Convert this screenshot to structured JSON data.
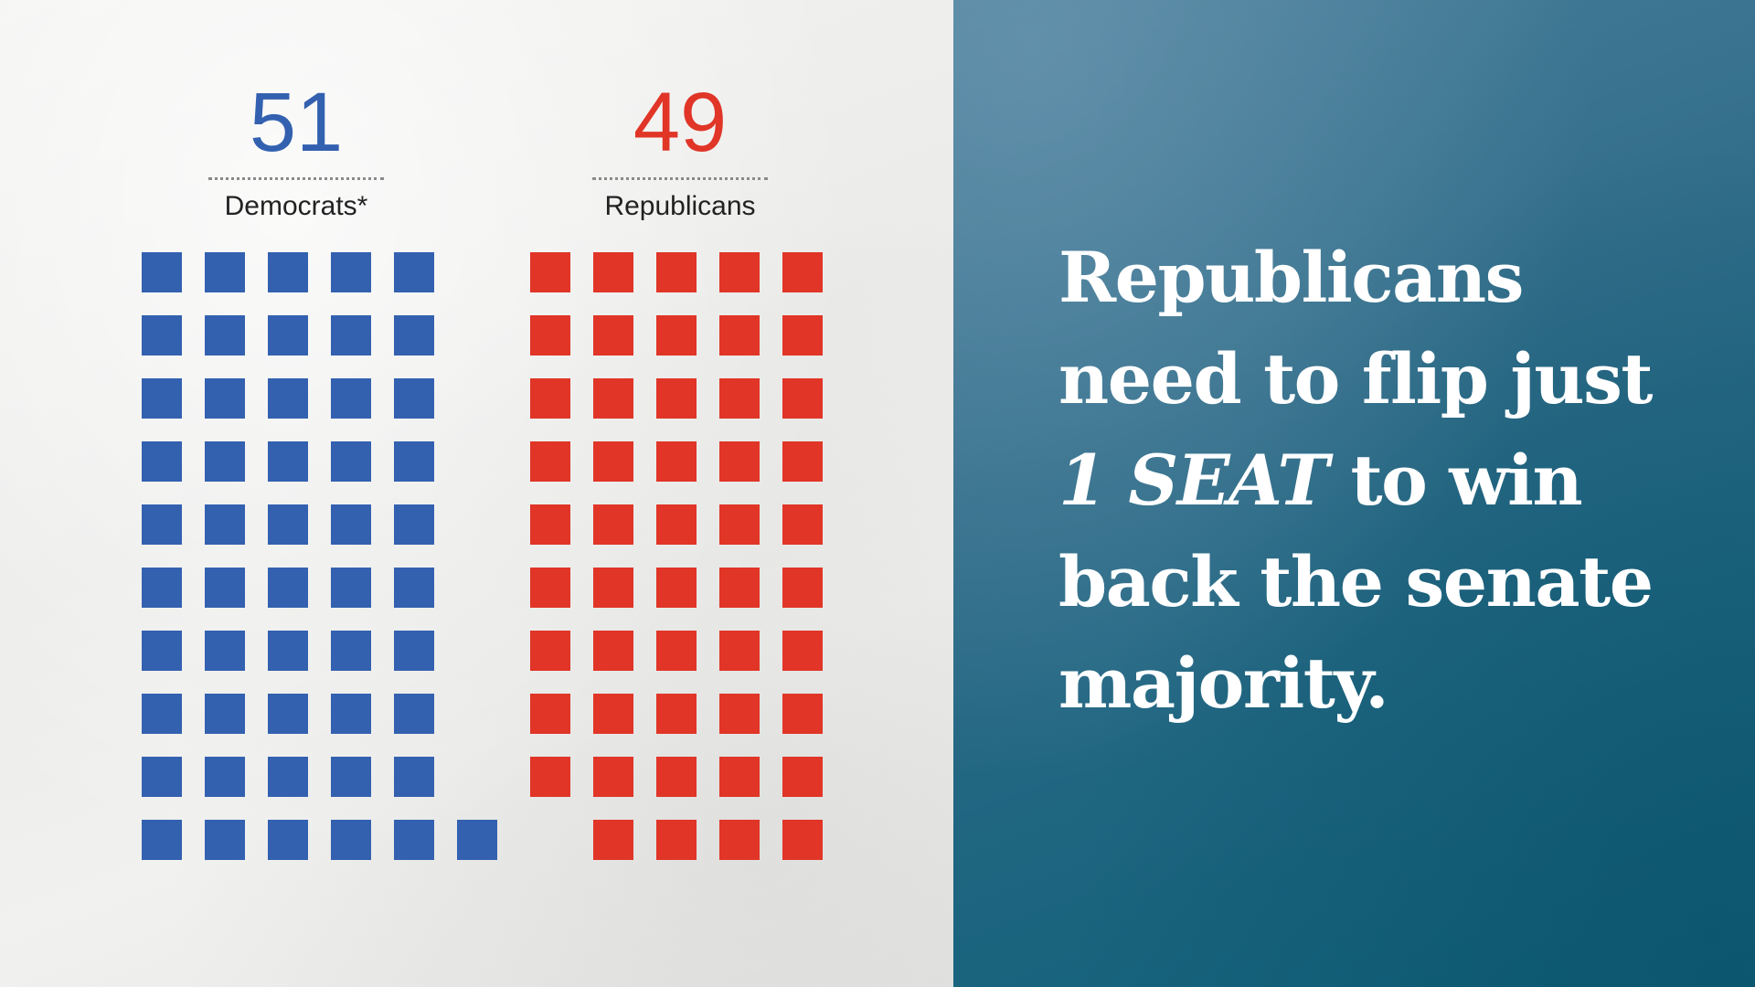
{
  "colors": {
    "democrat": "#3361b0",
    "republican": "#e03527",
    "headline_text": "#ffffff"
  },
  "chart_data": {
    "type": "waffle",
    "series": [
      {
        "name": "Democrats*",
        "value": 51,
        "color": "#3361b0"
      },
      {
        "name": "Republicans",
        "value": 49,
        "color": "#e03527"
      }
    ]
  },
  "labels": {
    "dem_count": "51",
    "dem_label": "Democrats*",
    "rep_count": "49",
    "rep_label": "Republicans"
  },
  "headline": {
    "line1": "Republicans",
    "line2": "need to flip just",
    "line3_emph": "1 SEAT",
    "line3_rest": " to win",
    "line4": "back the senate",
    "line5": "majority."
  }
}
